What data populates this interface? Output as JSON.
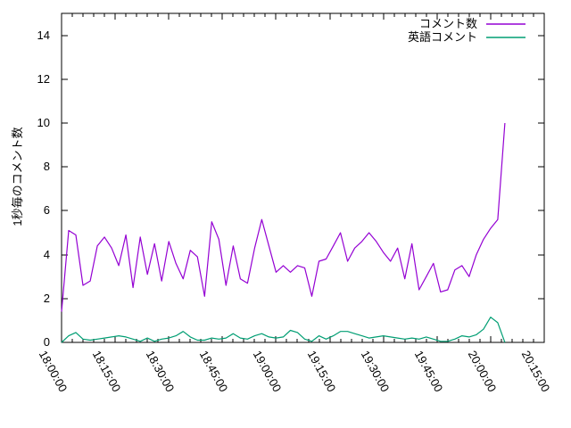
{
  "chart_data": {
    "type": "line",
    "title": "",
    "xlabel": "",
    "ylabel": "1秒毎のコメント数",
    "background": "#ffffff",
    "axis_color": "#000000",
    "grid": false,
    "legend_position": "top-right-inside",
    "ylim": [
      0,
      15
    ],
    "yticks": [
      0,
      2,
      4,
      6,
      8,
      10,
      12,
      14
    ],
    "xticks": [
      "18:00:00",
      "18:15:00",
      "18:30:00",
      "18:45:00",
      "19:00:00",
      "19:15:00",
      "19:30:00",
      "19:45:00",
      "20:00:00",
      "20:15:00"
    ],
    "x_minor_tick_minutes": 3,
    "x": [
      "18:00",
      "18:02",
      "18:04",
      "18:06",
      "18:08",
      "18:10",
      "18:12",
      "18:14",
      "18:16",
      "18:18",
      "18:20",
      "18:22",
      "18:24",
      "18:26",
      "18:28",
      "18:30",
      "18:32",
      "18:34",
      "18:36",
      "18:38",
      "18:40",
      "18:42",
      "18:44",
      "18:46",
      "18:48",
      "18:50",
      "18:52",
      "18:54",
      "18:56",
      "18:58",
      "19:00",
      "19:02",
      "19:04",
      "19:06",
      "19:08",
      "19:10",
      "19:12",
      "19:14",
      "19:16",
      "19:18",
      "19:20",
      "19:22",
      "19:24",
      "19:26",
      "19:28",
      "19:30",
      "19:32",
      "19:34",
      "19:36",
      "19:38",
      "19:40",
      "19:42",
      "19:44",
      "19:46",
      "19:48",
      "19:50",
      "19:52",
      "19:54",
      "19:56",
      "19:58",
      "20:00",
      "20:02",
      "20:04"
    ],
    "series": [
      {
        "id": "comments",
        "name": "コメント数",
        "color": "#9400D3",
        "values": [
          1.4,
          5.1,
          4.9,
          2.6,
          2.8,
          4.4,
          4.8,
          4.3,
          3.5,
          4.9,
          2.5,
          4.8,
          3.1,
          4.5,
          2.8,
          4.6,
          3.6,
          2.9,
          4.2,
          3.9,
          2.1,
          5.5,
          4.7,
          2.6,
          4.4,
          2.9,
          2.7,
          4.3,
          5.6,
          4.4,
          3.2,
          3.5,
          3.2,
          3.5,
          3.4,
          2.1,
          3.7,
          3.8,
          4.4,
          5.0,
          3.7,
          4.3,
          4.6,
          5.0,
          4.6,
          4.1,
          3.7,
          4.3,
          2.9,
          4.5,
          2.4,
          3.0,
          3.6,
          2.3,
          2.4,
          3.3,
          3.5,
          3.0,
          4.0,
          4.7,
          5.2,
          5.6,
          10.0
        ]
      },
      {
        "id": "english-comments",
        "name": "英語コメント",
        "color": "#009E73",
        "values": [
          0.0,
          0.3,
          0.45,
          0.15,
          0.1,
          0.15,
          0.2,
          0.25,
          0.3,
          0.25,
          0.15,
          0.05,
          0.2,
          0.05,
          0.15,
          0.2,
          0.3,
          0.5,
          0.25,
          0.1,
          0.1,
          0.2,
          0.15,
          0.2,
          0.4,
          0.2,
          0.15,
          0.3,
          0.4,
          0.25,
          0.2,
          0.25,
          0.55,
          0.45,
          0.15,
          0.05,
          0.3,
          0.15,
          0.3,
          0.5,
          0.5,
          0.4,
          0.3,
          0.2,
          0.25,
          0.3,
          0.25,
          0.2,
          0.15,
          0.2,
          0.15,
          0.25,
          0.15,
          0.05,
          0.05,
          0.15,
          0.3,
          0.25,
          0.35,
          0.6,
          1.15,
          0.9,
          0.0
        ]
      }
    ]
  }
}
